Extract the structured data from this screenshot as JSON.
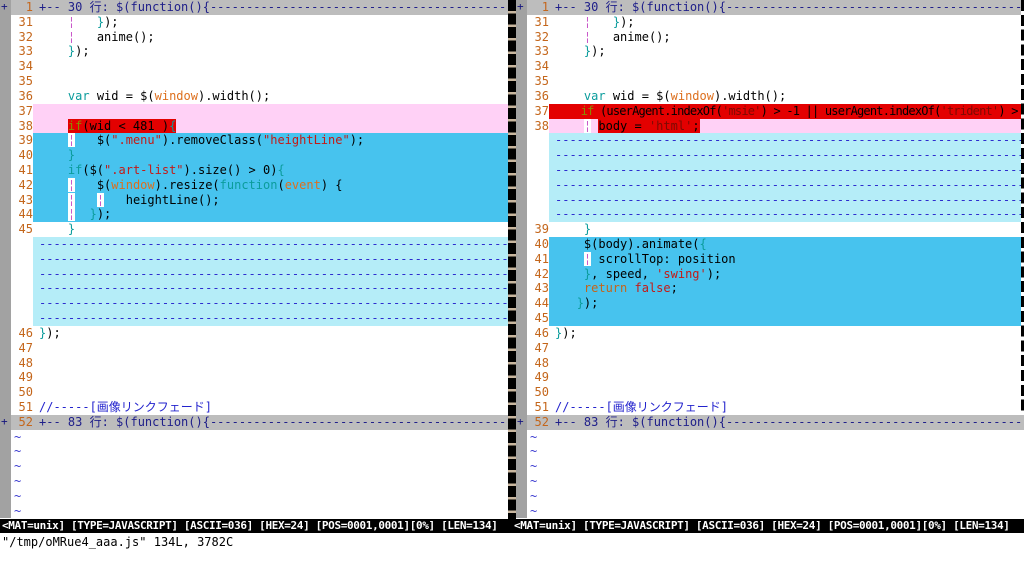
{
  "colors": {
    "diff_add_bg": "#47c3ee",
    "diff_change_bg": "#ffd1f6",
    "diff_text_bg": "#e30000",
    "diff_filler_bg": "#b5edf8",
    "fold_row_bg": "#bdbdbd",
    "fold_column_bg": "#a2a2a2",
    "line_number": "#c4661b",
    "keyword_teal": "#0b9c9c",
    "identifier_orange": "#dd6f1d",
    "string_red": "#c41a16",
    "comment_blue": "#2323cd",
    "indent_guide_magenta": "#c957c9",
    "statusline_bg": "#000000",
    "statusline_fg": "#ffffff"
  },
  "status": {
    "left": "<MAT=unix] [TYPE=JAVASCRIPT] [ASCII=036] [HEX=24] [POS=0001,0001][0%] [LEN=134]",
    "right": "<MAT=unix] [TYPE=JAVASCRIPT] [ASCII=036] [HEX=24] [POS=0001,0001][0%] [LEN=134]"
  },
  "command_line": "\"/tmp/oMRue4_aaa.js\" 134L, 3782C",
  "panes": {
    "left": {
      "rows": [
        {
          "t": "fold",
          "sign": "+",
          "n": "1",
          "text": "+-- 30 行: $(function(){"
        },
        {
          "t": "code",
          "n": "31",
          "tk": [
            [
              "t",
              "    "
            ],
            [
              "in",
              "¦"
            ],
            [
              "t",
              "   "
            ],
            [
              "br",
              "}"
            ],
            [
              "t",
              ");"
            ]
          ]
        },
        {
          "t": "code",
          "n": "32",
          "tk": [
            [
              "t",
              "    "
            ],
            [
              "in",
              "¦"
            ],
            [
              "t",
              "   anime();"
            ]
          ]
        },
        {
          "t": "code",
          "n": "33",
          "tk": [
            [
              "t",
              "    "
            ],
            [
              "br",
              "}"
            ],
            [
              "t",
              ");"
            ]
          ]
        },
        {
          "t": "code",
          "n": "34",
          "tk": []
        },
        {
          "t": "code",
          "n": "35",
          "tk": []
        },
        {
          "t": "code",
          "n": "36",
          "tk": [
            [
              "t",
              "    "
            ],
            [
              "kw",
              "var"
            ],
            [
              "t",
              " wid = $("
            ],
            [
              "id",
              "window"
            ],
            [
              "t",
              ").width();"
            ]
          ]
        },
        {
          "t": "code",
          "n": "37",
          "bg": "chg",
          "tk": []
        },
        {
          "t": "code",
          "n": "38",
          "bg": "chg",
          "tk": [
            [
              "t",
              "    "
            ],
            [
              "ol",
              "if",
              "r"
            ],
            [
              "t",
              "(wid < 481 )",
              "r"
            ],
            [
              "br",
              "{",
              "r"
            ]
          ]
        },
        {
          "t": "code",
          "n": "39",
          "bg": "add",
          "tk": [
            [
              "t",
              "    "
            ],
            [
              "ib",
              "¦"
            ],
            [
              "t",
              "   $("
            ],
            [
              "str",
              "\".menu\""
            ],
            [
              "t",
              ").removeClass("
            ],
            [
              "str",
              "\"heightLine\""
            ],
            [
              "t",
              ");"
            ]
          ]
        },
        {
          "t": "code",
          "n": "40",
          "bg": "add",
          "tk": [
            [
              "t",
              "    "
            ],
            [
              "br",
              "}"
            ]
          ]
        },
        {
          "t": "code",
          "n": "41",
          "bg": "add",
          "tk": [
            [
              "t",
              "    "
            ],
            [
              "kw",
              "if"
            ],
            [
              "t",
              "($("
            ],
            [
              "str",
              "\".art-list\""
            ],
            [
              "t",
              ").size() > 0)"
            ],
            [
              "br",
              "{"
            ]
          ]
        },
        {
          "t": "code",
          "n": "42",
          "bg": "add",
          "tk": [
            [
              "t",
              "    "
            ],
            [
              "ib",
              "¦"
            ],
            [
              "t",
              "   $("
            ],
            [
              "id",
              "window"
            ],
            [
              "t",
              ").resize("
            ],
            [
              "kw",
              "function"
            ],
            [
              "t",
              "("
            ],
            [
              "id",
              "event"
            ],
            [
              "t",
              ") {"
            ]
          ]
        },
        {
          "t": "code",
          "n": "43",
          "bg": "add",
          "tk": [
            [
              "t",
              "    "
            ],
            [
              "ib",
              "¦"
            ],
            [
              "t",
              "   "
            ],
            [
              "ib",
              "¦"
            ],
            [
              "t",
              "   heightLine();"
            ]
          ]
        },
        {
          "t": "code",
          "n": "44",
          "bg": "add",
          "tk": [
            [
              "t",
              "    "
            ],
            [
              "ib",
              "¦"
            ],
            [
              "t",
              "  "
            ],
            [
              "br",
              "}"
            ],
            [
              "t",
              ");"
            ]
          ]
        },
        {
          "t": "code",
          "n": "45",
          "tk": [
            [
              "t",
              "    "
            ],
            [
              "br",
              "}"
            ]
          ]
        },
        {
          "t": "fill"
        },
        {
          "t": "fill"
        },
        {
          "t": "fill"
        },
        {
          "t": "fill"
        },
        {
          "t": "fill"
        },
        {
          "t": "fill"
        },
        {
          "t": "code",
          "n": "46",
          "tk": [
            [
              "br",
              "}"
            ],
            [
              "t",
              ");"
            ]
          ]
        },
        {
          "t": "code",
          "n": "47",
          "tk": []
        },
        {
          "t": "code",
          "n": "48",
          "tk": []
        },
        {
          "t": "code",
          "n": "49",
          "tk": []
        },
        {
          "t": "code",
          "n": "50",
          "tk": []
        },
        {
          "t": "code",
          "n": "51",
          "tk": [
            [
              "cm",
              "//-----[画像リンクフェード]"
            ]
          ]
        },
        {
          "t": "fold",
          "sign": "+",
          "n": "52",
          "text": "+-- 83 行: $(function(){"
        },
        {
          "t": "tilde"
        },
        {
          "t": "tilde"
        },
        {
          "t": "tilde"
        },
        {
          "t": "tilde"
        },
        {
          "t": "tilde"
        },
        {
          "t": "tilde"
        }
      ]
    },
    "right": {
      "rows": [
        {
          "t": "fold",
          "sign": "+",
          "n": "1",
          "text": "+-- 30 行: $(function(){"
        },
        {
          "t": "code",
          "n": "31",
          "tk": [
            [
              "t",
              "    "
            ],
            [
              "in",
              "¦"
            ],
            [
              "t",
              "   "
            ],
            [
              "br",
              "}"
            ],
            [
              "t",
              ");"
            ]
          ]
        },
        {
          "t": "code",
          "n": "32",
          "tk": [
            [
              "t",
              "    "
            ],
            [
              "in",
              "¦"
            ],
            [
              "t",
              "   anime();"
            ]
          ]
        },
        {
          "t": "code",
          "n": "33",
          "tk": [
            [
              "t",
              "    "
            ],
            [
              "br",
              "}"
            ],
            [
              "t",
              ");"
            ]
          ]
        },
        {
          "t": "code",
          "n": "34",
          "tk": []
        },
        {
          "t": "code",
          "n": "35",
          "tk": []
        },
        {
          "t": "code",
          "n": "36",
          "tk": [
            [
              "t",
              "    "
            ],
            [
              "kw",
              "var"
            ],
            [
              "t",
              " wid = $("
            ],
            [
              "id",
              "window"
            ],
            [
              "t",
              ").width();"
            ]
          ]
        },
        {
          "t": "code",
          "n": "37",
          "bg": "red",
          "cond": true,
          "tk": [
            [
              "t",
              "    "
            ],
            [
              "ol",
              "if"
            ],
            [
              "t",
              " (userAgent.indexOf("
            ],
            [
              "sd",
              "'msie'"
            ],
            [
              "t",
              ") > -1 || userAgent.indexOf("
            ],
            [
              "sd",
              "'trident'"
            ],
            [
              "t",
              ") >"
            ]
          ]
        },
        {
          "t": "code",
          "n": "38",
          "bg": "chg",
          "tk": [
            [
              "t",
              "    "
            ],
            [
              "ib",
              "¦"
            ],
            [
              "t",
              " "
            ],
            [
              "t",
              "body = ",
              "r"
            ],
            [
              "sd",
              "'html'",
              "r"
            ],
            [
              "t",
              ";",
              "r"
            ]
          ]
        },
        {
          "t": "fill"
        },
        {
          "t": "fill"
        },
        {
          "t": "fill"
        },
        {
          "t": "fill"
        },
        {
          "t": "fill"
        },
        {
          "t": "fill"
        },
        {
          "t": "code",
          "n": "39",
          "tk": [
            [
              "t",
              "    "
            ],
            [
              "br",
              "}"
            ]
          ]
        },
        {
          "t": "code",
          "n": "40",
          "bg": "add",
          "tk": [
            [
              "t",
              "    "
            ],
            [
              "t",
              "$(body).animate("
            ],
            [
              "br",
              "{"
            ]
          ]
        },
        {
          "t": "code",
          "n": "41",
          "bg": "add",
          "tk": [
            [
              "t",
              "    "
            ],
            [
              "ib",
              "¦"
            ],
            [
              "t",
              " scrollTop: position"
            ]
          ]
        },
        {
          "t": "code",
          "n": "42",
          "bg": "add",
          "tk": [
            [
              "t",
              "    "
            ],
            [
              "br",
              "}"
            ],
            [
              "t",
              ", speed, "
            ],
            [
              "str",
              "'swing'"
            ],
            [
              "t",
              ");"
            ]
          ]
        },
        {
          "t": "code",
          "n": "43",
          "bg": "add",
          "tk": [
            [
              "t",
              "    "
            ],
            [
              "st",
              "return"
            ],
            [
              "t",
              " "
            ],
            [
              "bo",
              "false"
            ],
            [
              "t",
              ";"
            ]
          ]
        },
        {
          "t": "code",
          "n": "44",
          "bg": "add",
          "tk": [
            [
              "t",
              "   "
            ],
            [
              "br",
              "}"
            ],
            [
              "t",
              ");"
            ]
          ]
        },
        {
          "t": "code",
          "n": "45",
          "bg": "add",
          "tk": []
        },
        {
          "t": "code",
          "n": "46",
          "tk": [
            [
              "br",
              "}"
            ],
            [
              "t",
              ");"
            ]
          ]
        },
        {
          "t": "code",
          "n": "47",
          "tk": []
        },
        {
          "t": "code",
          "n": "48",
          "tk": []
        },
        {
          "t": "code",
          "n": "49",
          "tk": []
        },
        {
          "t": "code",
          "n": "50",
          "tk": []
        },
        {
          "t": "code",
          "n": "51",
          "tk": [
            [
              "cm",
              "//-----[画像リンクフェード]"
            ]
          ]
        },
        {
          "t": "fold",
          "sign": "+",
          "n": "52",
          "text": "+-- 83 行: $(function(){"
        },
        {
          "t": "tilde"
        },
        {
          "t": "tilde"
        },
        {
          "t": "tilde"
        },
        {
          "t": "tilde"
        },
        {
          "t": "tilde"
        },
        {
          "t": "tilde"
        }
      ]
    }
  }
}
